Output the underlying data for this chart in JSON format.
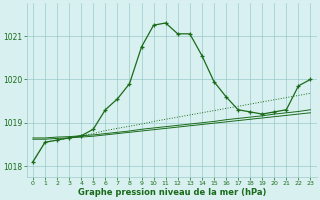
{
  "hours": [
    0,
    1,
    2,
    3,
    4,
    5,
    6,
    7,
    8,
    9,
    10,
    11,
    12,
    13,
    14,
    15,
    16,
    17,
    18,
    19,
    20,
    21,
    22,
    23
  ],
  "line_main": [
    1018.1,
    1018.55,
    1018.6,
    1018.65,
    1018.7,
    1018.85,
    1019.3,
    1019.55,
    1019.9,
    1020.75,
    1021.25,
    1021.3,
    1021.05,
    1021.05,
    1020.55,
    1019.95,
    1019.6,
    1019.3,
    1019.25,
    1019.2,
    1019.25,
    1019.3,
    1019.85,
    1020.0
  ],
  "line_dotted": [
    1018.1,
    1018.55,
    1018.6,
    1018.65,
    1018.7,
    1018.75,
    1018.82,
    1018.87,
    1018.92,
    1018.97,
    1019.03,
    1019.08,
    1019.13,
    1019.18,
    1019.23,
    1019.28,
    1019.33,
    1019.38,
    1019.43,
    1019.48,
    1019.53,
    1019.58,
    1019.63,
    1019.68
  ],
  "line_flat1": [
    1018.65,
    1018.65,
    1018.67,
    1018.68,
    1018.7,
    1018.72,
    1018.75,
    1018.78,
    1018.81,
    1018.85,
    1018.88,
    1018.91,
    1018.94,
    1018.97,
    1019.0,
    1019.03,
    1019.07,
    1019.1,
    1019.13,
    1019.16,
    1019.2,
    1019.23,
    1019.26,
    1019.3
  ],
  "line_flat2": [
    1018.62,
    1018.62,
    1018.64,
    1018.65,
    1018.67,
    1018.69,
    1018.72,
    1018.75,
    1018.78,
    1018.81,
    1018.84,
    1018.87,
    1018.9,
    1018.93,
    1018.96,
    1018.99,
    1019.02,
    1019.05,
    1019.08,
    1019.11,
    1019.14,
    1019.17,
    1019.2,
    1019.23
  ],
  "bg_color": "#d8f0f0",
  "grid_color": "#99cccc",
  "line_color": "#1a6b1a",
  "text_color": "#1a6b1a",
  "xlabel": "Graphe pression niveau de la mer (hPa)",
  "ylim_min": 1017.75,
  "ylim_max": 1021.75,
  "yticks": [
    1018,
    1019,
    1020,
    1021
  ],
  "xticks": [
    0,
    1,
    2,
    3,
    4,
    5,
    6,
    7,
    8,
    9,
    10,
    11,
    12,
    13,
    14,
    15,
    16,
    17,
    18,
    19,
    20,
    21,
    22,
    23
  ]
}
